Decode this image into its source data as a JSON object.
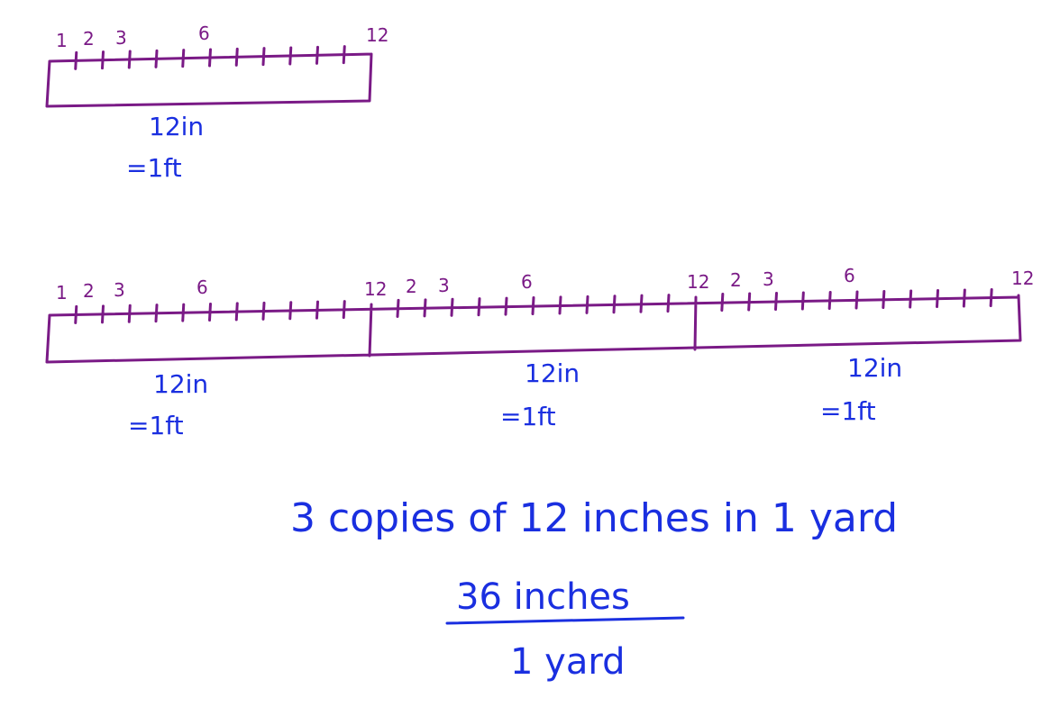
{
  "ruler_numbers": [
    "1",
    "2",
    "3",
    "6",
    "12"
  ],
  "foot_label": {
    "inches": "12in",
    "feet": "=1ft"
  },
  "statement": "3 copies of 12 inches in 1 yard",
  "fraction": {
    "numerator": "36 inches",
    "denominator": "1 yard"
  },
  "colors": {
    "ruler": "#7a1a86",
    "text": "#1a2fe0"
  }
}
